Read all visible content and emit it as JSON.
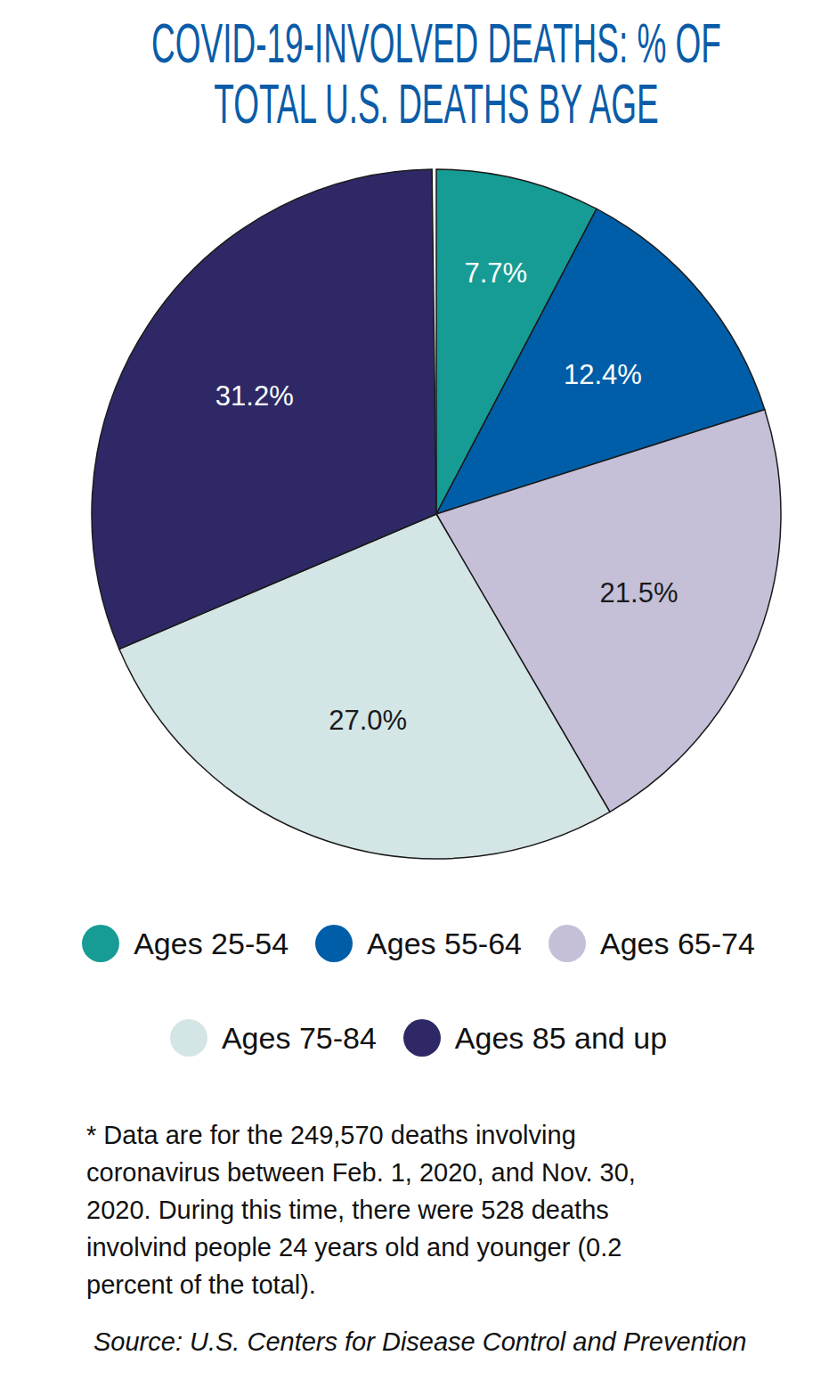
{
  "chart_data": {
    "type": "pie",
    "title": "COVID-19-INVOLVED DEATHS: % OF TOTAL U.S. DEATHS BY AGE",
    "categories": [
      "Ages 25-54",
      "Ages 55-64",
      "Ages 65-74",
      "Ages 75-84",
      "Ages 85 and up"
    ],
    "values": [
      7.7,
      12.4,
      21.5,
      27.0,
      31.2
    ],
    "value_labels": [
      "7.7%",
      "12.4%",
      "21.5%",
      "27.0%",
      "31.2%"
    ],
    "colors": [
      "#169c94",
      "#005ea8",
      "#c5c0d8",
      "#d3e5e4",
      "#2e2966"
    ],
    "data_labels": true,
    "legend": "bottom",
    "footnote": "* Data are for the 249,570 deaths involving coronavirus between Feb. 1, 2020, and Nov. 30, 2020. During this time, there were 528 deaths involvind people 24 years old and younger (0.2 percent of the total).",
    "source": "Source: U.S. Centers for Disease Control and Prevention"
  }
}
